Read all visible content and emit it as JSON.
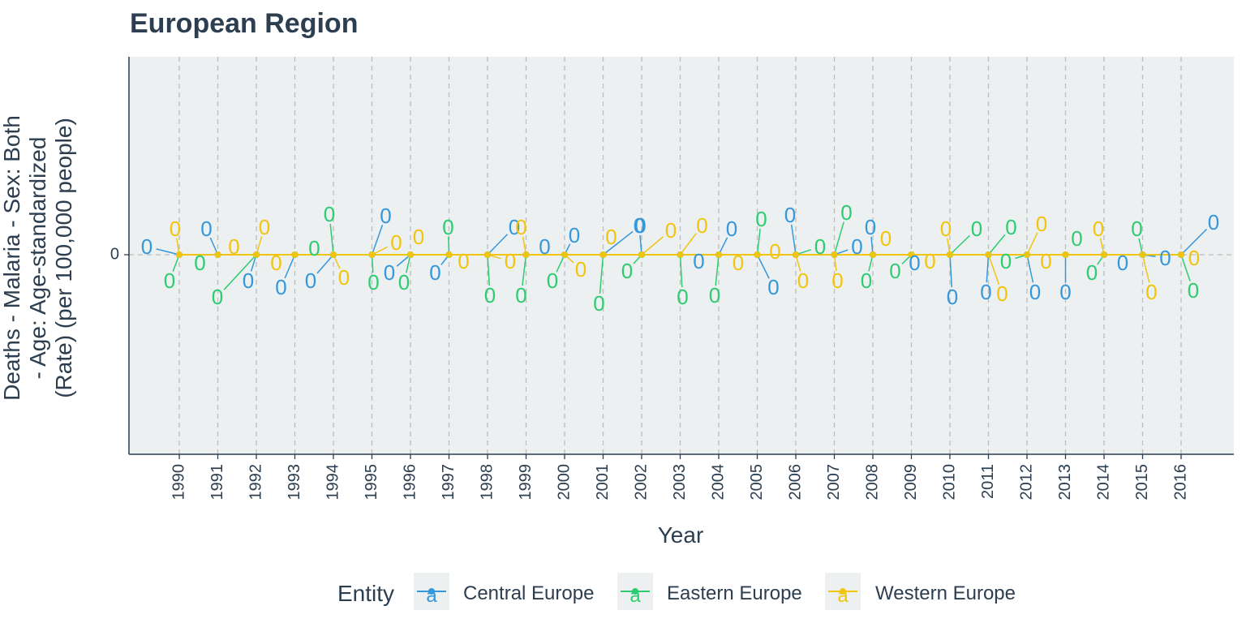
{
  "chart_data": {
    "type": "line",
    "title": "European Region",
    "xlabel": "Year",
    "ylabel": "Deaths - Malaria - Sex: Both - Age: Age-standardized (Rate) (per 100,000 people)",
    "ylabel_lines": [
      "Deaths - Malaria - Sex: Both",
      "- Age: Age-standardized",
      "(Rate) (per 100,000 people)"
    ],
    "x": [
      1990,
      1991,
      1992,
      1993,
      1994,
      1995,
      1996,
      1997,
      1998,
      1999,
      2000,
      2001,
      2002,
      2003,
      2004,
      2005,
      2006,
      2007,
      2008,
      2009,
      2010,
      2011,
      2012,
      2013,
      2014,
      2015,
      2016
    ],
    "y_ticks": [
      "0"
    ],
    "grid": true,
    "legend_title": "Entity",
    "legend_position": "bottom",
    "legend_key_glyph": "a",
    "series": [
      {
        "name": "Central Europe",
        "color": "#3498db",
        "values": [
          0,
          0,
          0,
          0,
          0,
          0,
          0,
          0,
          0,
          0,
          0,
          0,
          0,
          0,
          0,
          0,
          0,
          0,
          0,
          0,
          0,
          0,
          0,
          0,
          0,
          0,
          0
        ],
        "labels": [
          "0",
          "0",
          "0",
          "0",
          "0",
          "0",
          "0",
          "0",
          "0",
          "0",
          "0",
          "0",
          "0",
          "0",
          "0",
          "0",
          "0",
          "0",
          "0",
          "0",
          "0",
          "0",
          "0",
          "0",
          "0",
          "0",
          "0"
        ]
      },
      {
        "name": "Eastern Europe",
        "color": "#2ecc71",
        "values": [
          0,
          0,
          0,
          0,
          0,
          0,
          0,
          0,
          0,
          0,
          0,
          0,
          0,
          0,
          0,
          0,
          0,
          0,
          0,
          0,
          0,
          0,
          0,
          0,
          0,
          0,
          0
        ],
        "labels": [
          "0",
          "0",
          "0",
          "0",
          "0",
          "0",
          "0",
          "0",
          "0",
          "0",
          "0",
          "0",
          "0",
          "0",
          "0",
          "0",
          "0",
          "0",
          "0",
          "0",
          "0",
          "0",
          "0",
          "0",
          "0",
          "0",
          "0"
        ]
      },
      {
        "name": "Western Europe",
        "color": "#f1c40f",
        "values": [
          0,
          0,
          0,
          0,
          0,
          0,
          0,
          0,
          0,
          0,
          0,
          0,
          0,
          0,
          0,
          0,
          0,
          0,
          0,
          0,
          0,
          0,
          0,
          0,
          0,
          0,
          0
        ],
        "labels": [
          "0",
          "0",
          "0",
          "0",
          "0",
          "0",
          "0",
          "0",
          "0",
          "0",
          "0",
          "0",
          "0",
          "0",
          "0",
          "0",
          "0",
          "0",
          "0",
          "0",
          "0",
          "0",
          "0",
          "0",
          "0",
          "0",
          "0"
        ]
      }
    ]
  }
}
